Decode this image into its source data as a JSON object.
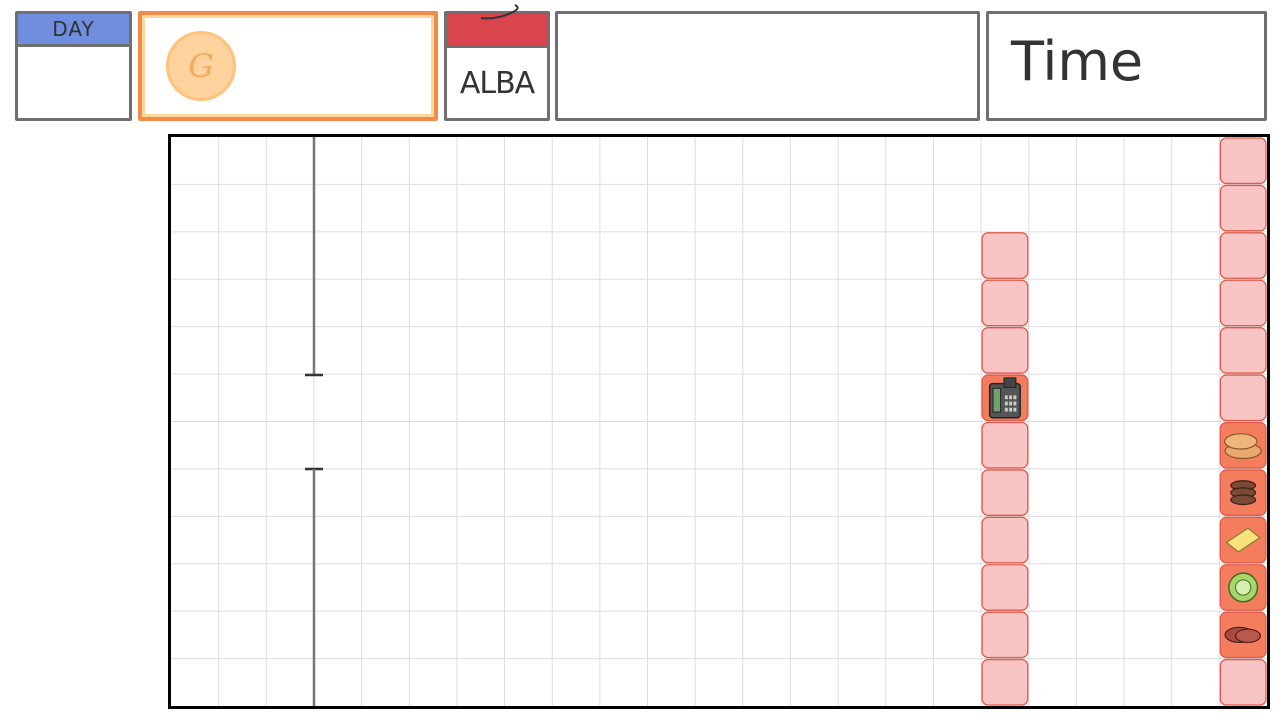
{
  "hud": {
    "day": {
      "label": "DAY",
      "value": ""
    },
    "gold": {
      "coin_symbol": "G",
      "amount": ""
    },
    "calendar": {
      "name": "ALBA"
    },
    "message": {
      "text": ""
    },
    "time": {
      "label": "Time"
    }
  },
  "board": {
    "grid_columns": 23,
    "grid_rows": 12,
    "colors": {
      "grid_line": "#dddddd",
      "counter_fill": "#f9c4c4",
      "counter_border": "#e05b4e",
      "active_tile": "#f47d5e",
      "wall": "#777777"
    },
    "counters": [
      {
        "col": 17,
        "row": 2,
        "item": "",
        "icon": ""
      },
      {
        "col": 17,
        "row": 3,
        "item": "",
        "icon": ""
      },
      {
        "col": 17,
        "row": 4,
        "item": "",
        "icon": ""
      },
      {
        "col": 17,
        "row": 5,
        "item": "register",
        "icon": "cash-register-icon"
      },
      {
        "col": 17,
        "row": 6,
        "item": "",
        "icon": ""
      },
      {
        "col": 17,
        "row": 7,
        "item": "",
        "icon": ""
      },
      {
        "col": 17,
        "row": 8,
        "item": "",
        "icon": ""
      },
      {
        "col": 17,
        "row": 9,
        "item": "",
        "icon": ""
      },
      {
        "col": 17,
        "row": 10,
        "item": "",
        "icon": ""
      },
      {
        "col": 17,
        "row": 11,
        "item": "",
        "icon": ""
      },
      {
        "col": 22,
        "row": 0,
        "item": "",
        "icon": ""
      },
      {
        "col": 22,
        "row": 1,
        "item": "",
        "icon": ""
      },
      {
        "col": 22,
        "row": 2,
        "item": "",
        "icon": ""
      },
      {
        "col": 22,
        "row": 3,
        "item": "",
        "icon": ""
      },
      {
        "col": 22,
        "row": 4,
        "item": "",
        "icon": ""
      },
      {
        "col": 22,
        "row": 5,
        "item": "",
        "icon": ""
      },
      {
        "col": 22,
        "row": 6,
        "item": "buns",
        "icon": "bun-icon"
      },
      {
        "col": 22,
        "row": 7,
        "item": "patty",
        "icon": "patty-icon"
      },
      {
        "col": 22,
        "row": 8,
        "item": "cheese",
        "icon": "cheese-icon"
      },
      {
        "col": 22,
        "row": 9,
        "item": "lettuce",
        "icon": "lettuce-icon"
      },
      {
        "col": 22,
        "row": 10,
        "item": "meat",
        "icon": "meat-icon"
      },
      {
        "col": 22,
        "row": 11,
        "item": "",
        "icon": ""
      }
    ]
  }
}
